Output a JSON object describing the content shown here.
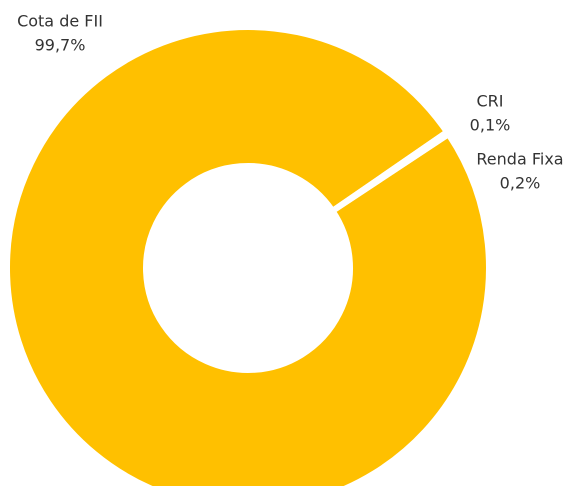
{
  "chart_data": {
    "type": "donut",
    "categories": [
      "Cota de FII",
      "CRI",
      "Renda Fixa"
    ],
    "values": [
      99.7,
      0.1,
      0.2
    ],
    "value_labels": [
      "99,7%",
      "0,1%",
      "0,2%"
    ],
    "color": "#ffc000"
  }
}
